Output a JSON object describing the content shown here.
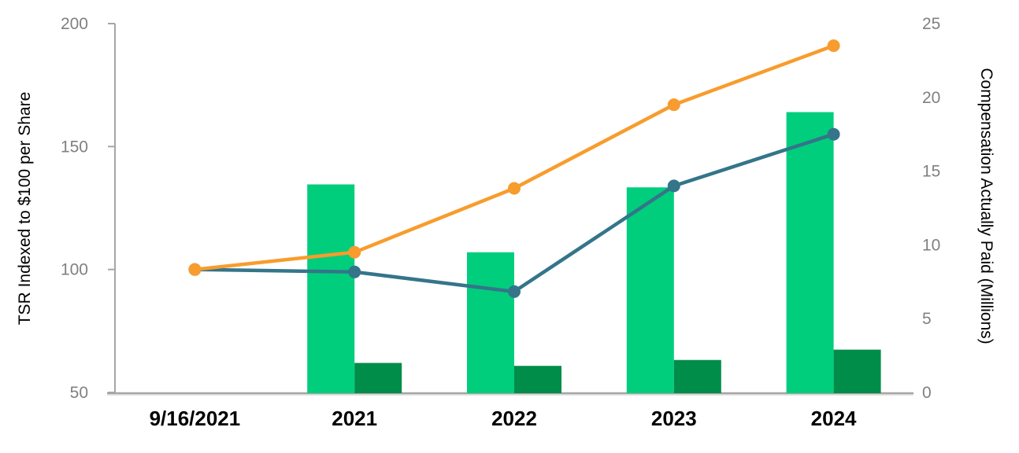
{
  "chart_data": {
    "type": "bar",
    "subtype": "combo-bar-line-dual-axis",
    "categories": [
      "9/16/2021",
      "2021",
      "2022",
      "2023",
      "2024"
    ],
    "bar_series": [
      {
        "name": "light-green-bars",
        "axis": "right",
        "color": "#00CE7D",
        "values": [
          null,
          14.1,
          9.5,
          13.9,
          19.0
        ]
      },
      {
        "name": "dark-green-bars",
        "axis": "right",
        "color": "#008C49",
        "values": [
          null,
          2.0,
          1.8,
          2.2,
          2.9
        ]
      }
    ],
    "line_series": [
      {
        "name": "teal-line",
        "axis": "left",
        "color": "#34758A",
        "values": [
          100,
          99,
          91,
          134,
          155
        ]
      },
      {
        "name": "orange-line",
        "axis": "left",
        "color": "#F89C2D",
        "values": [
          100,
          107,
          133,
          167,
          191
        ]
      }
    ],
    "left_axis": {
      "label": "TSR Indexed to $100 per Share",
      "min": 50,
      "max": 200,
      "ticks": [
        50,
        100,
        150,
        200
      ]
    },
    "right_axis": {
      "label": "Compensation Actually Paid (Millions)",
      "min": 0,
      "max": 25,
      "ticks": [
        0,
        5,
        10,
        15,
        20,
        25
      ]
    },
    "title": "",
    "legend": "none",
    "grid": "off"
  },
  "colors": {
    "axis_line": "#A6A6A6",
    "axis_line_shadow": "#D9D9D9",
    "tick_label": "#808080",
    "category_label": "#000000",
    "axis_title": "#000000",
    "background": "#FFFFFF"
  }
}
